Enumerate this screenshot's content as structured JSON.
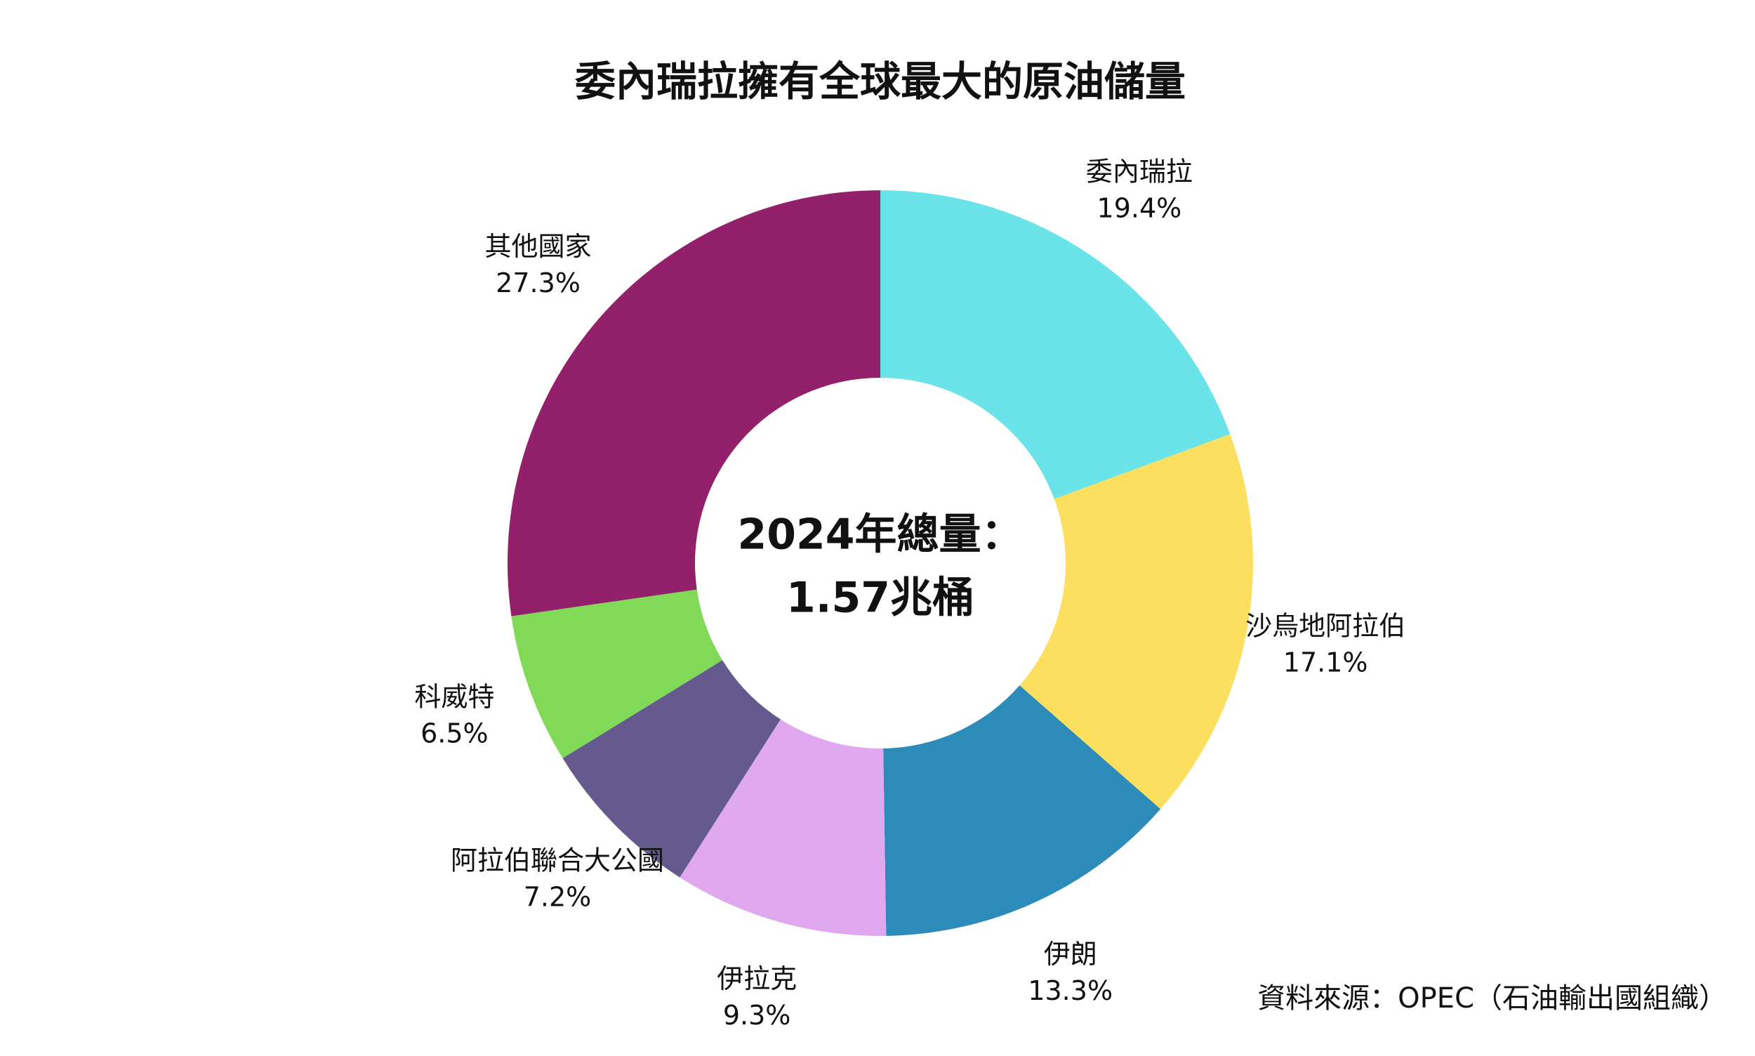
{
  "chart_data": {
    "type": "donut",
    "title": "委內瑞拉擁有全球最大的原油儲量",
    "categories": [
      "委內瑞拉",
      "沙烏地阿拉伯",
      "伊朗",
      "伊拉克",
      "阿拉伯聯合大公國",
      "科威特",
      "其他國家"
    ],
    "values": [
      19.4,
      17.1,
      13.3,
      9.3,
      7.2,
      6.5,
      27.3
    ],
    "value_labels": [
      "19.4%",
      "17.1%",
      "13.3%",
      "9.3%",
      "7.2%",
      "6.5%",
      "27.3%"
    ],
    "colors": [
      "#6ae4e9",
      "#fddf5f",
      "#2d8bba",
      "#e0a9ef",
      "#645a8d",
      "#80d957",
      "#93206b"
    ],
    "center_text": [
      "2024年總量：",
      "1.57兆桶"
    ],
    "source": "資料來源：OPEC（石油輸出國組織）"
  }
}
